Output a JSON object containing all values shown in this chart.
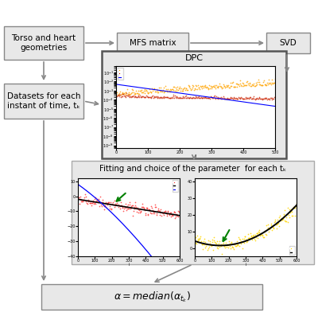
{
  "bg_color": "#ffffff",
  "box_color": "#e8e8e8",
  "box_edge_color": "#888888",
  "arrow_color": "#888888",
  "box1_text": "Torso and heart\ngeometries",
  "box2_text": "MFS matrix",
  "box3_text": "SVD",
  "box4_text": "Datasets for each\ninstant of time, tₖ",
  "box5_text": "DPC",
  "box6_text": "Fitting and choice of the parameter  for each tₖ",
  "box7_text": "alpha_median"
}
